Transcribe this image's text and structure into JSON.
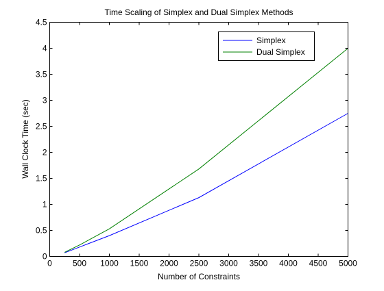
{
  "chart_data": {
    "type": "line",
    "title": "Time Scaling of Simplex and Dual Simplex Methods",
    "xlabel": "Number of Constraints",
    "ylabel": "Wall Clock Time (sec)",
    "xlim": [
      0,
      5000
    ],
    "ylim": [
      0,
      4.5
    ],
    "xticks": [
      0,
      500,
      1000,
      1500,
      2000,
      2500,
      3000,
      3500,
      4000,
      4500,
      5000
    ],
    "yticks": [
      0,
      0.5,
      1,
      1.5,
      2,
      2.5,
      3,
      3.5,
      4,
      4.5
    ],
    "xtick_labels": [
      "0",
      "500",
      "1000",
      "1500",
      "2000",
      "2500",
      "3000",
      "3500",
      "4000",
      "4500",
      "5000"
    ],
    "ytick_labels": [
      "0",
      "0.5",
      "1",
      "1.5",
      "2",
      "2.5",
      "3",
      "3.5",
      "4",
      "4.5"
    ],
    "grid": false,
    "legend_position": "top-right",
    "series": [
      {
        "name": "Simplex",
        "color": "#0000ff",
        "x": [
          250,
          500,
          1000,
          2500,
          5000
        ],
        "y": [
          0.07,
          0.18,
          0.4,
          1.13,
          2.75
        ]
      },
      {
        "name": "Dual Simplex",
        "color": "#008000",
        "x": [
          250,
          500,
          1000,
          2500,
          5000
        ],
        "y": [
          0.08,
          0.22,
          0.53,
          1.68,
          4.0
        ]
      }
    ]
  }
}
